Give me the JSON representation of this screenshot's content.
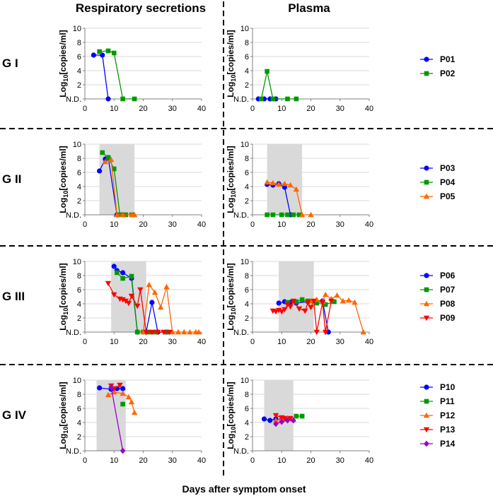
{
  "headers": {
    "left": "Respiratory secretions",
    "right": "Plasma"
  },
  "x_axis_label": "Days after symptom onset",
  "y_axis_label_prefix": "Log",
  "y_axis_label_sub": "10",
  "y_axis_label_suffix": "[copies/ml]",
  "y_tick_labels": [
    "N.D.",
    "2",
    "4",
    "6",
    "8",
    "10"
  ],
  "x_tick_labels": [
    "0",
    "10",
    "20",
    "30",
    "40"
  ],
  "colors": {
    "P01": "#0000ff",
    "P02": "#009900",
    "P03": "#0000ff",
    "P04": "#009900",
    "P05": "#ff6600",
    "P06": "#0000ff",
    "P07": "#009900",
    "P08": "#ff6600",
    "P09": "#ff0000",
    "P10": "#0000ff",
    "P11": "#009900",
    "P12": "#ff6600",
    "P13": "#ff0000",
    "P14": "#9900cc",
    "shade": "#d9d9d9",
    "axis": "#808080",
    "grid": "#d9d9d9"
  },
  "chart_data": [
    {
      "group": "G I",
      "legend": [
        {
          "name": "P01",
          "marker": "circle"
        },
        {
          "name": "P02",
          "marker": "square"
        }
      ],
      "respiratory": {
        "type": "line",
        "shade": null,
        "xlim": [
          0,
          40
        ],
        "ylim": [
          0,
          10
        ],
        "series": [
          {
            "name": "P01",
            "marker": "circle",
            "points": [
              [
                3,
                6.2
              ],
              [
                6,
                6.2
              ],
              [
                8,
                0
              ]
            ]
          },
          {
            "name": "P02",
            "marker": "square",
            "points": [
              [
                5,
                6.7
              ],
              [
                8,
                6.8
              ],
              [
                10,
                6.5
              ],
              [
                13,
                0
              ],
              [
                17,
                0
              ]
            ]
          }
        ]
      },
      "plasma": {
        "type": "line",
        "shade": null,
        "xlim": [
          0,
          40
        ],
        "ylim": [
          0,
          10
        ],
        "series": [
          {
            "name": "P01",
            "marker": "circle",
            "points": [
              [
                2,
                0
              ],
              [
                4,
                0
              ],
              [
                6,
                0
              ],
              [
                8,
                0
              ]
            ]
          },
          {
            "name": "P02",
            "marker": "square",
            "points": [
              [
                3,
                0
              ],
              [
                5,
                3.9
              ],
              [
                7,
                0
              ],
              [
                12,
                0
              ],
              [
                15,
                0
              ]
            ]
          }
        ]
      }
    },
    {
      "group": "G II",
      "legend": [
        {
          "name": "P03",
          "marker": "circle"
        },
        {
          "name": "P04",
          "marker": "square"
        },
        {
          "name": "P05",
          "marker": "triangle-up"
        }
      ],
      "respiratory": {
        "type": "line",
        "shade": [
          5,
          17
        ],
        "xlim": [
          0,
          40
        ],
        "ylim": [
          0,
          10
        ],
        "series": [
          {
            "name": "P03",
            "marker": "circle",
            "points": [
              [
                5,
                6.2
              ],
              [
                7,
                7.9
              ],
              [
                8,
                8.1
              ],
              [
                11,
                0
              ],
              [
                13,
                0
              ]
            ]
          },
          {
            "name": "P04",
            "marker": "square",
            "points": [
              [
                6,
                8.8
              ],
              [
                8,
                8.1
              ],
              [
                10,
                6.5
              ],
              [
                12,
                0
              ],
              [
                14,
                0
              ],
              [
                16,
                0
              ]
            ]
          },
          {
            "name": "P05",
            "marker": "triangle-up",
            "points": [
              [
                7,
                7.5
              ],
              [
                9,
                7.8
              ],
              [
                11,
                0
              ],
              [
                13,
                0
              ],
              [
                16,
                0
              ],
              [
                17,
                0
              ]
            ]
          }
        ]
      },
      "plasma": {
        "type": "line",
        "shade": [
          5,
          17
        ],
        "xlim": [
          0,
          40
        ],
        "ylim": [
          0,
          10
        ],
        "series": [
          {
            "name": "P03",
            "marker": "circle",
            "points": [
              [
                5,
                4.3
              ],
              [
                7,
                4.2
              ],
              [
                9,
                4.4
              ],
              [
                11,
                3.9
              ],
              [
                13,
                0
              ]
            ]
          },
          {
            "name": "P04",
            "marker": "square",
            "points": [
              [
                5,
                0
              ],
              [
                7,
                0
              ],
              [
                10,
                0
              ],
              [
                12,
                0
              ],
              [
                14,
                0
              ],
              [
                16,
                0
              ]
            ]
          },
          {
            "name": "P05",
            "marker": "triangle-up",
            "points": [
              [
                5,
                4.6
              ],
              [
                7,
                4.5
              ],
              [
                9,
                4.3
              ],
              [
                11,
                4.4
              ],
              [
                13,
                4.2
              ],
              [
                15,
                3.6
              ],
              [
                17,
                0
              ],
              [
                20,
                0
              ]
            ]
          }
        ]
      }
    },
    {
      "group": "G III",
      "legend": [
        {
          "name": "P06",
          "marker": "circle"
        },
        {
          "name": "P07",
          "marker": "square"
        },
        {
          "name": "P08",
          "marker": "triangle-up"
        },
        {
          "name": "P09",
          "marker": "triangle-down"
        }
      ],
      "respiratory": {
        "type": "line",
        "shade": [
          9,
          21
        ],
        "xlim": [
          0,
          40
        ],
        "ylim": [
          0,
          10
        ],
        "series": [
          {
            "name": "P06",
            "marker": "circle",
            "points": [
              [
                10,
                9.3
              ],
              [
                11,
                8.7
              ],
              [
                13,
                8.4
              ],
              [
                16,
                7.6
              ],
              [
                18,
                0
              ],
              [
                21,
                0
              ],
              [
                23,
                4.2
              ],
              [
                25,
                0
              ],
              [
                28,
                0
              ]
            ]
          },
          {
            "name": "P07",
            "marker": "square",
            "points": [
              [
                11,
                8.4
              ],
              [
                13,
                7.6
              ],
              [
                16,
                7.9
              ],
              [
                18,
                0
              ],
              [
                20,
                0
              ],
              [
                22,
                0
              ],
              [
                24,
                0
              ],
              [
                28,
                0
              ]
            ]
          },
          {
            "name": "P08",
            "marker": "triangle-up",
            "points": [
              [
                20,
                0
              ],
              [
                22,
                6.7
              ],
              [
                24,
                5.6
              ],
              [
                26,
                3.5
              ],
              [
                28,
                6.4
              ],
              [
                30,
                0
              ],
              [
                32,
                0
              ],
              [
                34,
                0
              ],
              [
                36,
                0
              ],
              [
                38,
                0
              ],
              [
                39,
                0
              ]
            ]
          },
          {
            "name": "P09",
            "marker": "triangle-down",
            "points": [
              [
                8,
                6.9
              ],
              [
                10,
                5.3
              ],
              [
                12,
                4.7
              ],
              [
                13,
                4.6
              ],
              [
                14,
                4.4
              ],
              [
                15,
                4.1
              ],
              [
                16,
                5.1
              ],
              [
                18,
                3.7
              ],
              [
                19,
                6.0
              ],
              [
                21,
                0
              ],
              [
                23,
                0
              ],
              [
                25,
                0
              ],
              [
                27,
                0
              ],
              [
                29,
                0
              ]
            ]
          }
        ]
      },
      "plasma": {
        "type": "line",
        "shade": [
          9,
          21
        ],
        "xlim": [
          0,
          40
        ],
        "ylim": [
          0,
          10
        ],
        "series": [
          {
            "name": "P06",
            "marker": "circle",
            "points": [
              [
                9,
                4.1
              ],
              [
                11,
                4.3
              ],
              [
                13,
                4.2
              ],
              [
                15,
                4.1
              ],
              [
                19,
                4.3
              ],
              [
                22,
                4.2
              ],
              [
                24,
                4.4
              ],
              [
                26,
                0
              ]
            ]
          },
          {
            "name": "P07",
            "marker": "square",
            "points": [
              [
                12,
                4.2
              ],
              [
                15,
                4.3
              ],
              [
                17,
                4.6
              ],
              [
                19,
                4.4
              ],
              [
                22,
                4.1
              ],
              [
                25,
                3.9
              ],
              [
                28,
                4.3
              ]
            ]
          },
          {
            "name": "P08",
            "marker": "triangle-up",
            "points": [
              [
                20,
                4.4
              ],
              [
                22,
                4.6
              ],
              [
                24,
                4.3
              ],
              [
                25,
                5.3
              ],
              [
                27,
                4.7
              ],
              [
                29,
                5.2
              ],
              [
                31,
                4.4
              ],
              [
                33,
                4.5
              ],
              [
                35,
                4.2
              ],
              [
                38,
                0
              ]
            ]
          },
          {
            "name": "P09",
            "marker": "triangle-down",
            "points": [
              [
                7,
                3.0
              ],
              [
                8,
                2.9
              ],
              [
                9,
                3.1
              ],
              [
                10,
                2.9
              ],
              [
                11,
                3.2
              ],
              [
                12,
                3.9
              ],
              [
                13,
                3.6
              ],
              [
                14,
                4.4
              ],
              [
                16,
                3.3
              ],
              [
                18,
                3.0
              ],
              [
                19,
                4.2
              ],
              [
                20,
                3.5
              ],
              [
                21,
                4.4
              ],
              [
                22,
                0
              ],
              [
                24,
                4.2
              ],
              [
                25,
                0
              ],
              [
                27,
                4.4
              ]
            ]
          }
        ]
      }
    },
    {
      "group": "G IV",
      "legend": [
        {
          "name": "P10",
          "marker": "circle"
        },
        {
          "name": "P11",
          "marker": "square"
        },
        {
          "name": "P12",
          "marker": "triangle-up"
        },
        {
          "name": "P13",
          "marker": "triangle-down"
        },
        {
          "name": "P14",
          "marker": "diamond"
        }
      ],
      "respiratory": {
        "type": "line",
        "shade": [
          4,
          14
        ],
        "xlim": [
          0,
          40
        ],
        "ylim": [
          0,
          10
        ],
        "series": [
          {
            "name": "P10",
            "marker": "circle",
            "points": [
              [
                5,
                8.9
              ],
              [
                9,
                8.7
              ],
              [
                11,
                8.8
              ],
              [
                13,
                8.8
              ]
            ]
          },
          {
            "name": "P11",
            "marker": "square",
            "points": [
              [
                13,
                6.6
              ]
            ]
          },
          {
            "name": "P12",
            "marker": "triangle-up",
            "points": [
              [
                8,
                7.9
              ],
              [
                10,
                8.3
              ],
              [
                13,
                8.1
              ],
              [
                15,
                7.6
              ],
              [
                16,
                6.9
              ],
              [
                17,
                5.4
              ]
            ]
          },
          {
            "name": "P13",
            "marker": "triangle-down",
            "points": [
              [
                9,
                9.2
              ],
              [
                10,
                8.8
              ],
              [
                12,
                9.3
              ]
            ]
          },
          {
            "name": "P14",
            "marker": "diamond",
            "points": [
              [
                9,
                9.0
              ],
              [
                13,
                0
              ]
            ]
          }
        ]
      },
      "plasma": {
        "type": "line",
        "shade": [
          4,
          14
        ],
        "xlim": [
          0,
          40
        ],
        "ylim": [
          0,
          10
        ],
        "series": [
          {
            "name": "P10",
            "marker": "circle",
            "points": [
              [
                4,
                4.5
              ],
              [
                6,
                4.3
              ],
              [
                8,
                4.5
              ],
              [
                10,
                4.4
              ],
              [
                12,
                4.5
              ]
            ]
          },
          {
            "name": "P11",
            "marker": "square",
            "points": [
              [
                15,
                4.9
              ],
              [
                17,
                4.9
              ]
            ]
          },
          {
            "name": "P12",
            "marker": "triangle-up",
            "points": [
              [
                8,
                4.3
              ],
              [
                10,
                4.5
              ],
              [
                12,
                4.6
              ],
              [
                14,
                4.4
              ]
            ]
          },
          {
            "name": "P13",
            "marker": "triangle-down",
            "points": [
              [
                8,
                5.0
              ],
              [
                10,
                4.7
              ],
              [
                11,
                4.6
              ],
              [
                13,
                4.6
              ]
            ]
          },
          {
            "name": "P14",
            "marker": "diamond",
            "points": [
              [
                8,
                3.8
              ],
              [
                10,
                4.1
              ],
              [
                12,
                4.3
              ],
              [
                14,
                4.3
              ]
            ]
          }
        ]
      }
    }
  ]
}
